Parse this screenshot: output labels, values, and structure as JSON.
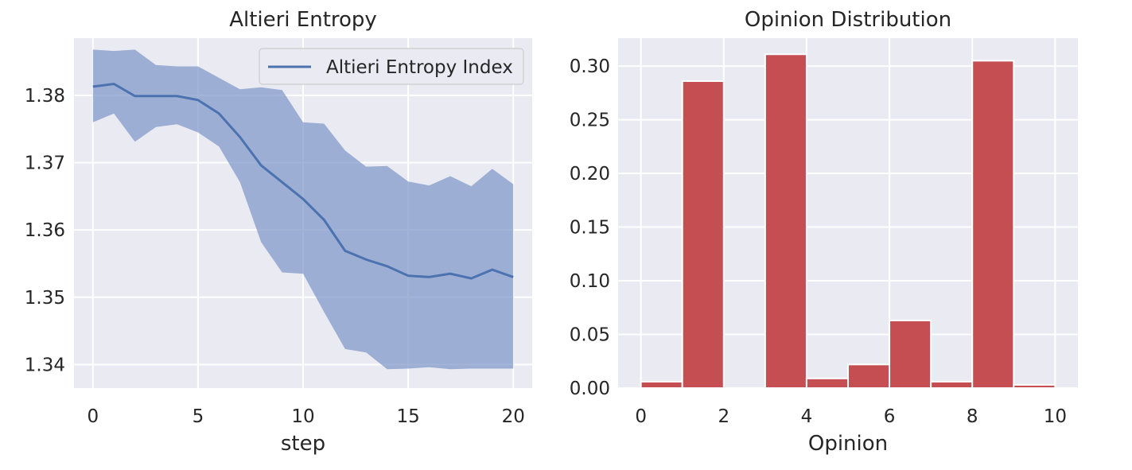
{
  "chart_data": [
    {
      "type": "line",
      "title": "Altieri Entropy",
      "xlabel": "step",
      "ylabel": "",
      "xlim": [
        -0.9,
        20.9
      ],
      "ylim": [
        1.3365,
        1.3885
      ],
      "xticks": [
        0,
        5,
        10,
        15,
        20
      ],
      "yticks": [
        1.34,
        1.35,
        1.36,
        1.37,
        1.38
      ],
      "ytick_labels": [
        "1.34",
        "1.35",
        "1.36",
        "1.37",
        "1.38"
      ],
      "grid": true,
      "legend_position": "top-right",
      "series": [
        {
          "name": "Altieri Entropy Index",
          "color": "#4c72b0",
          "band_color": "#7e97c8",
          "x": [
            0,
            1,
            2,
            3,
            4,
            5,
            6,
            7,
            8,
            9,
            10,
            11,
            12,
            13,
            14,
            15,
            16,
            17,
            18,
            19,
            20
          ],
          "y": [
            1.3813,
            1.3817,
            1.3799,
            1.3799,
            1.3799,
            1.3793,
            1.3773,
            1.3738,
            1.3696,
            1.3671,
            1.3646,
            1.3615,
            1.3569,
            1.3556,
            1.3546,
            1.3532,
            1.353,
            1.3535,
            1.3528,
            1.3541,
            1.353
          ],
          "upper": [
            1.3868,
            1.3866,
            1.3868,
            1.3845,
            1.3843,
            1.3843,
            1.3826,
            1.3809,
            1.3812,
            1.3808,
            1.376,
            1.3758,
            1.3718,
            1.3694,
            1.3695,
            1.3672,
            1.3666,
            1.368,
            1.3665,
            1.3691,
            1.3668
          ],
          "lower": [
            1.376,
            1.3773,
            1.3731,
            1.3753,
            1.3757,
            1.3745,
            1.3724,
            1.3671,
            1.3582,
            1.3537,
            1.3535,
            1.3478,
            1.3423,
            1.3418,
            1.3393,
            1.3394,
            1.3396,
            1.3393,
            1.3394,
            1.3394,
            1.3394
          ]
        }
      ]
    },
    {
      "type": "bar",
      "title": "Opinion Distribution",
      "xlabel": "Opinion",
      "ylabel": "",
      "xlim": [
        -0.55,
        10.55
      ],
      "ylim": [
        0,
        0.326
      ],
      "xticks": [
        0,
        2,
        4,
        6,
        8,
        10
      ],
      "yticks": [
        0,
        0.05,
        0.1,
        0.15,
        0.2,
        0.25,
        0.3
      ],
      "ytick_labels": [
        "0.00",
        "0.05",
        "0.10",
        "0.15",
        "0.20",
        "0.25",
        "0.30"
      ],
      "grid": true,
      "color": "#c44e52",
      "bin_edges": [
        0,
        1,
        2,
        3,
        4,
        5,
        6,
        7,
        8,
        9,
        10
      ],
      "values": [
        0.006,
        0.286,
        0.0,
        0.311,
        0.009,
        0.022,
        0.063,
        0.006,
        0.305,
        0.003
      ]
    }
  ]
}
